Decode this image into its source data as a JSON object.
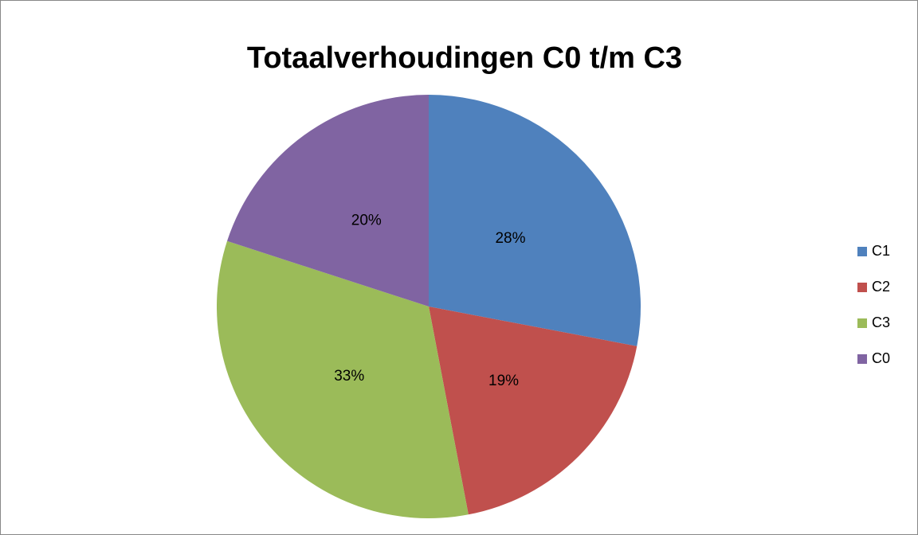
{
  "chart_data": {
    "type": "pie",
    "title": "Totaalverhoudingen C0 t/m C3",
    "categories": [
      "C1",
      "C2",
      "C3",
      "C0"
    ],
    "values": [
      28,
      19,
      33,
      20
    ],
    "value_labels": [
      "28%",
      "19%",
      "33%",
      "20%"
    ],
    "colors": [
      "#4f81bd",
      "#c0504d",
      "#9bbb59",
      "#8064a2"
    ],
    "legend": "right"
  }
}
